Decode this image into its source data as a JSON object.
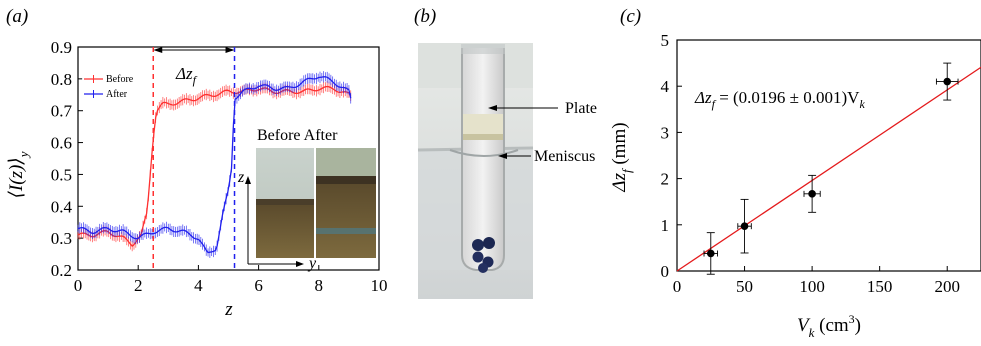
{
  "panel_labels": {
    "a": "(a)",
    "b": "(b)",
    "c": "(c)"
  },
  "panel_a": {
    "ylabel": "⟨I(z)⟩",
    "ylabel_sub": "y",
    "xlabel": "z",
    "delta_label": "Δz",
    "delta_label_sub": "f",
    "inset_title": "Before After",
    "inset_axis_z": "z",
    "inset_axis_y": "y"
  },
  "panel_b": {
    "plate_label": "Plate",
    "meniscus_label": "Meniscus"
  },
  "panel_c": {
    "xlabel": "V",
    "xlabel_sub": "k",
    "xlabel_unit": " (cm",
    "xlabel_exp": "3",
    "xlabel_close": ")",
    "ylabel": "Δz",
    "ylabel_sub": "f",
    "ylabel_unit": " (mm)",
    "eq_lhs": "Δz",
    "eq_lhs_sub": "f",
    "eq_rhs": " = (0.0196 ± 0.001)V",
    "eq_rhs_sub": "k"
  },
  "colors": {
    "before": "#ff3030",
    "after": "#2020ee",
    "fit": "#e41a1c",
    "points": "#000000"
  },
  "chart_data": [
    {
      "type": "line",
      "xlim": [
        0,
        10
      ],
      "ylim": [
        0.2,
        0.9
      ],
      "x_ticks": [
        0,
        2,
        4,
        6,
        8,
        10
      ],
      "y_ticks": [
        0.2,
        0.3,
        0.4,
        0.5,
        0.6,
        0.7,
        0.8,
        0.9
      ],
      "legend_position": "top-left",
      "vlines": [
        2.5,
        5.2
      ],
      "series": [
        {
          "name": "Before",
          "x": [
            0,
            0.5,
            1.0,
            1.5,
            1.8,
            2.1,
            2.3,
            2.4,
            2.5,
            2.6,
            2.8,
            3.0,
            3.5,
            4.0,
            4.5,
            5.0,
            5.5,
            6.0,
            6.5,
            7.0,
            7.5,
            8.0,
            8.5,
            9.0,
            9.1
          ],
          "y": [
            0.31,
            0.31,
            0.32,
            0.3,
            0.28,
            0.31,
            0.38,
            0.5,
            0.62,
            0.7,
            0.72,
            0.72,
            0.73,
            0.74,
            0.75,
            0.76,
            0.76,
            0.77,
            0.76,
            0.76,
            0.76,
            0.77,
            0.77,
            0.75,
            0.74
          ]
        },
        {
          "name": "After",
          "x": [
            0,
            0.5,
            1.0,
            1.5,
            2.0,
            2.5,
            3.0,
            3.5,
            4.0,
            4.3,
            4.6,
            4.8,
            5.0,
            5.1,
            5.2,
            5.5,
            6.0,
            6.5,
            7.0,
            7.5,
            8.0,
            8.5,
            9.0,
            9.1
          ],
          "y": [
            0.33,
            0.32,
            0.33,
            0.32,
            0.3,
            0.32,
            0.33,
            0.32,
            0.3,
            0.25,
            0.27,
            0.37,
            0.45,
            0.52,
            0.74,
            0.76,
            0.78,
            0.77,
            0.77,
            0.79,
            0.81,
            0.79,
            0.76,
            0.72
          ]
        }
      ]
    },
    {
      "type": "scatter",
      "xlim": [
        0,
        225
      ],
      "ylim": [
        0,
        5
      ],
      "x_ticks": [
        0,
        50,
        100,
        150,
        200
      ],
      "y_ticks": [
        0,
        1,
        2,
        3,
        4,
        5
      ],
      "points": [
        {
          "x": 25,
          "y": 0.38,
          "xerr": 5,
          "yerr": 0.45
        },
        {
          "x": 50,
          "y": 0.97,
          "xerr": 5,
          "yerr": 0.58
        },
        {
          "x": 100,
          "y": 1.67,
          "xerr": 6,
          "yerr": 0.4
        },
        {
          "x": 200,
          "y": 4.1,
          "xerr": 8,
          "yerr": 0.4
        }
      ],
      "fit": {
        "slope": 0.0196,
        "intercept": 0,
        "x_range": [
          0,
          225
        ]
      }
    }
  ]
}
